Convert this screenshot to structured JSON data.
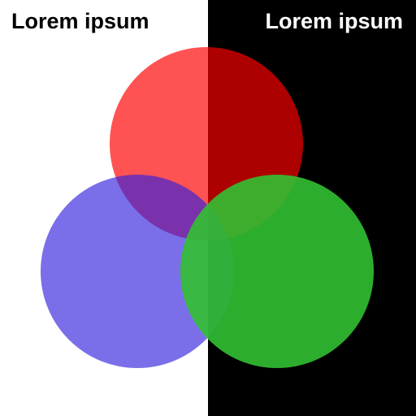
{
  "background": {
    "left_color": "#ffffff",
    "right_color": "#000000"
  },
  "labels": {
    "left_text": "Lorem ipsum",
    "left_color": "#000000",
    "right_text": "Lorem ipsum",
    "right_color": "#ffffff"
  },
  "circles": [
    {
      "name": "red-circle",
      "color": "#ff0000",
      "opacity": 0.68
    },
    {
      "name": "blue-circle",
      "color": "#3322dd",
      "opacity": 0.65
    },
    {
      "name": "green-circle",
      "color": "#32c032",
      "opacity": 0.9
    }
  ]
}
